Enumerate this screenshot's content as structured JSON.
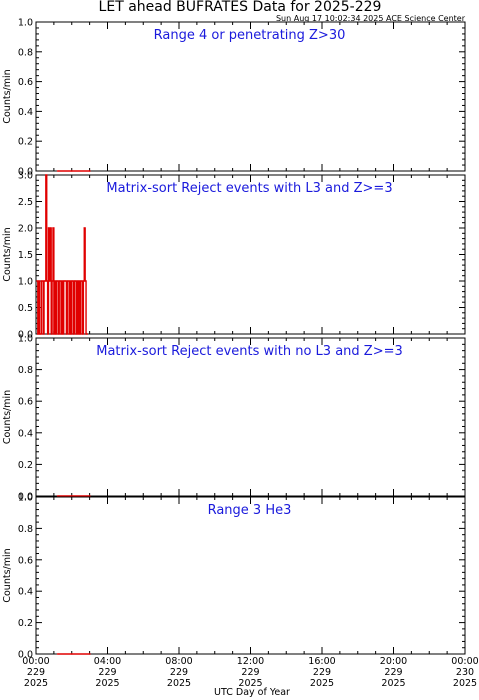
{
  "title": "LET ahead BUFRATES Data for 2025-229",
  "timestamp": "Sun Aug 17 10:02:34 2025 ACE Science Center",
  "colors": {
    "data": "#e00000",
    "panel_title": "#1a1adc",
    "frame": "#000000"
  },
  "chart_data": [
    {
      "type": "line",
      "title": "Range 4 or   penetrating Z>30",
      "ylabel": "Counts/min",
      "ylim": [
        0,
        1.0
      ],
      "yticks": [
        "0.0",
        "0.2",
        "0.4",
        "0.6",
        "0.8",
        "1.0"
      ],
      "x": [
        1.2,
        2.0,
        3.0
      ],
      "values": [
        0,
        0,
        0
      ]
    },
    {
      "type": "line",
      "title": "Matrix-sort Reject events with L3 and Z>=3",
      "ylabel": "Counts/min",
      "ylim": [
        0,
        3.0
      ],
      "yticks": [
        "0.0",
        "0.5",
        "1.0",
        "1.5",
        "2.0",
        "2.5",
        "3.0"
      ],
      "x": [
        0.05,
        0.1,
        0.15,
        0.2,
        0.25,
        0.3,
        0.35,
        0.4,
        0.45,
        0.5,
        0.55,
        0.6,
        0.65,
        0.7,
        0.75,
        0.8,
        0.85,
        0.9,
        0.95,
        1.0,
        1.05,
        1.1,
        1.15,
        1.2,
        1.25,
        1.3,
        1.35,
        1.4,
        1.45,
        1.5,
        1.55,
        1.6,
        1.65,
        1.7,
        1.75,
        1.8,
        1.85,
        1.9,
        1.95,
        2.0,
        2.05,
        2.1,
        2.15,
        2.2,
        2.25,
        2.3,
        2.35,
        2.4,
        2.45,
        2.5,
        2.55,
        2.6,
        2.65,
        2.7,
        2.75,
        2.8,
        2.85
      ],
      "values": [
        1,
        0,
        1,
        0,
        0,
        1,
        1,
        0,
        1,
        1,
        3,
        1,
        0,
        2,
        1,
        2,
        0,
        1,
        2,
        0,
        1,
        0,
        1,
        1,
        0,
        1,
        1,
        0,
        1,
        0,
        1,
        1,
        1,
        0,
        1,
        1,
        0,
        1,
        0,
        1,
        1,
        0,
        1,
        1,
        0,
        1,
        0,
        1,
        0,
        1,
        1,
        0,
        1,
        2,
        1,
        0,
        0
      ]
    },
    {
      "type": "line",
      "title": "Matrix-sort Reject events with no L3 and Z>=3",
      "ylabel": "Counts/min",
      "ylim": [
        0,
        1.0
      ],
      "yticks": [
        "0.0",
        "0.2",
        "0.4",
        "0.6",
        "0.8",
        "1.0"
      ],
      "x": [
        1.2,
        2.0,
        3.0
      ],
      "values": [
        0,
        0,
        0
      ]
    },
    {
      "type": "line",
      "title": "Range 3 He3",
      "ylabel": "Counts/min",
      "ylim": [
        0,
        1.0
      ],
      "yticks": [
        "0.0",
        "0.2",
        "0.4",
        "0.6",
        "0.8",
        "1.0"
      ],
      "x": [
        1.2,
        2.0,
        3.0
      ],
      "values": [
        0,
        0,
        0
      ]
    }
  ],
  "x_axis": {
    "label": "UTC Day of Year",
    "range_hours": [
      0,
      24
    ],
    "ticks": [
      {
        "time": "00:00",
        "day": "229",
        "year": "2025",
        "hour": 0
      },
      {
        "time": "04:00",
        "day": "229",
        "year": "2025",
        "hour": 4
      },
      {
        "time": "08:00",
        "day": "229",
        "year": "2025",
        "hour": 8
      },
      {
        "time": "12:00",
        "day": "229",
        "year": "2025",
        "hour": 12
      },
      {
        "time": "16:00",
        "day": "229",
        "year": "2025",
        "hour": 16
      },
      {
        "time": "20:00",
        "day": "229",
        "year": "2025",
        "hour": 20
      },
      {
        "time": "00:00",
        "day": "230",
        "year": "2025",
        "hour": 24
      }
    ]
  }
}
